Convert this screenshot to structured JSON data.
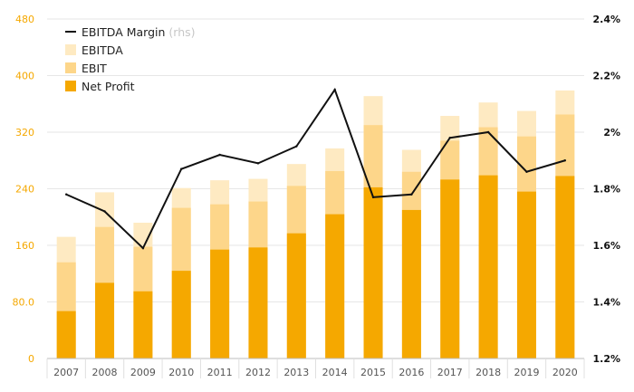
{
  "chart_data": {
    "type": "bar",
    "stacked": true,
    "categories": [
      "2007",
      "2008",
      "2009",
      "2010",
      "2011",
      "2012",
      "2013",
      "2014",
      "2015",
      "2016",
      "2017",
      "2018",
      "2019",
      "2020"
    ],
    "series": [
      {
        "name": "Net Profit",
        "color": "#f5a800",
        "values": [
          67,
          107,
          95,
          124,
          154,
          157,
          177,
          204,
          242,
          210,
          253,
          259,
          236,
          258
        ]
      },
      {
        "name": "EBIT",
        "color": "#fdd68a",
        "values": [
          136,
          186,
          158,
          213,
          218,
          222,
          244,
          265,
          330,
          264,
          308,
          327,
          314,
          345
        ]
      },
      {
        "name": "EBITDA",
        "color": "#feeac2",
        "values": [
          172,
          235,
          192,
          241,
          252,
          254,
          275,
          297,
          371,
          295,
          343,
          362,
          350,
          379
        ]
      }
    ],
    "line_series": {
      "name": "EBITDA Margin",
      "suffix": "(rhs)",
      "color": "#111111",
      "values": [
        1.78,
        1.72,
        1.59,
        1.87,
        1.92,
        1.89,
        1.95,
        2.15,
        1.77,
        1.78,
        1.98,
        2.0,
        1.86,
        1.9
      ]
    },
    "y_left": {
      "min": 0,
      "max": 480,
      "ticks": [
        "0",
        "80.0",
        "160",
        "240",
        "320",
        "400",
        "480"
      ],
      "tick_values": [
        0,
        80,
        160,
        240,
        320,
        400,
        480
      ],
      "color": "#f5a800"
    },
    "y_right": {
      "min": 1.2,
      "max": 2.4,
      "ticks": [
        "1.2%",
        "1.4%",
        "1.6%",
        "1.8%",
        "2%",
        "2.2%",
        "2.4%"
      ],
      "tick_values": [
        1.2,
        1.4,
        1.6,
        1.8,
        2.0,
        2.2,
        2.4
      ]
    },
    "grid": true,
    "legend_position": "top-left"
  }
}
